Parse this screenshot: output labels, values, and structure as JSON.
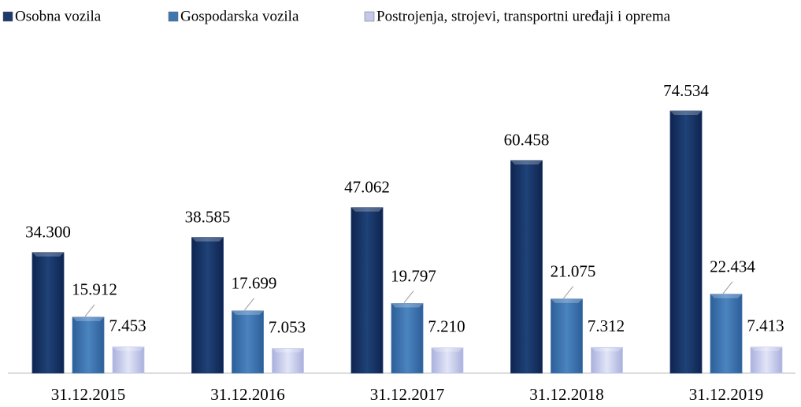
{
  "chart_data": {
    "type": "bar",
    "categories": [
      "31.12.2015",
      "31.12.2016",
      "31.12.2017",
      "31.12.2018",
      "31.12.2019"
    ],
    "series": [
      {
        "name": "Osobna vozila",
        "color": "#1c3a6b",
        "values": [
          34300,
          38585,
          47062,
          60458,
          74534
        ],
        "value_labels": [
          "34.300",
          "38.585",
          "47.062",
          "60.458",
          "74.534"
        ]
      },
      {
        "name": "Gospodarska vozila",
        "color": "#3f76b0",
        "values": [
          15912,
          17699,
          19797,
          21075,
          22434
        ],
        "value_labels": [
          "15.912",
          "17.699",
          "19.797",
          "21.075",
          "22.434"
        ]
      },
      {
        "name": "Postrojenja, strojevi, transportni uređaji i oprema",
        "color": "#c3c8ec",
        "values": [
          7453,
          7053,
          7210,
          7312,
          7413
        ],
        "value_labels": [
          "7.453",
          "7.053",
          "7.210",
          "7.312",
          "7.413"
        ]
      }
    ],
    "legend": "top"
  }
}
